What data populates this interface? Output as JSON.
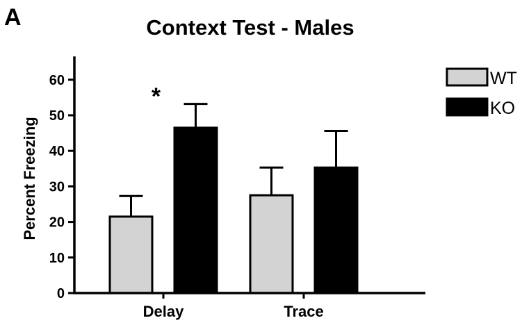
{
  "panel_label": "A",
  "colors": {
    "wt_fill": "#d3d3d3",
    "ko_fill": "#000000",
    "stroke": "#000000"
  },
  "chart_data": {
    "type": "bar",
    "title": "Context Test - Males",
    "xlabel": "",
    "ylabel": "Percent Freezing",
    "ylim": [
      0,
      65
    ],
    "yticks": [
      "0",
      "10",
      "20",
      "30",
      "40",
      "50",
      "60"
    ],
    "categories": [
      "Delay",
      "Trace"
    ],
    "series": [
      {
        "name": "WT",
        "values": [
          21.5,
          27.5
        ],
        "errors": [
          5.8,
          7.8
        ]
      },
      {
        "name": "KO",
        "values": [
          46.5,
          35.3
        ],
        "errors": [
          6.7,
          10.3
        ]
      }
    ],
    "annotations": [
      {
        "text": "*",
        "category": "Delay",
        "series": "KO"
      }
    ],
    "legend_position": "top-right",
    "grid": false
  }
}
